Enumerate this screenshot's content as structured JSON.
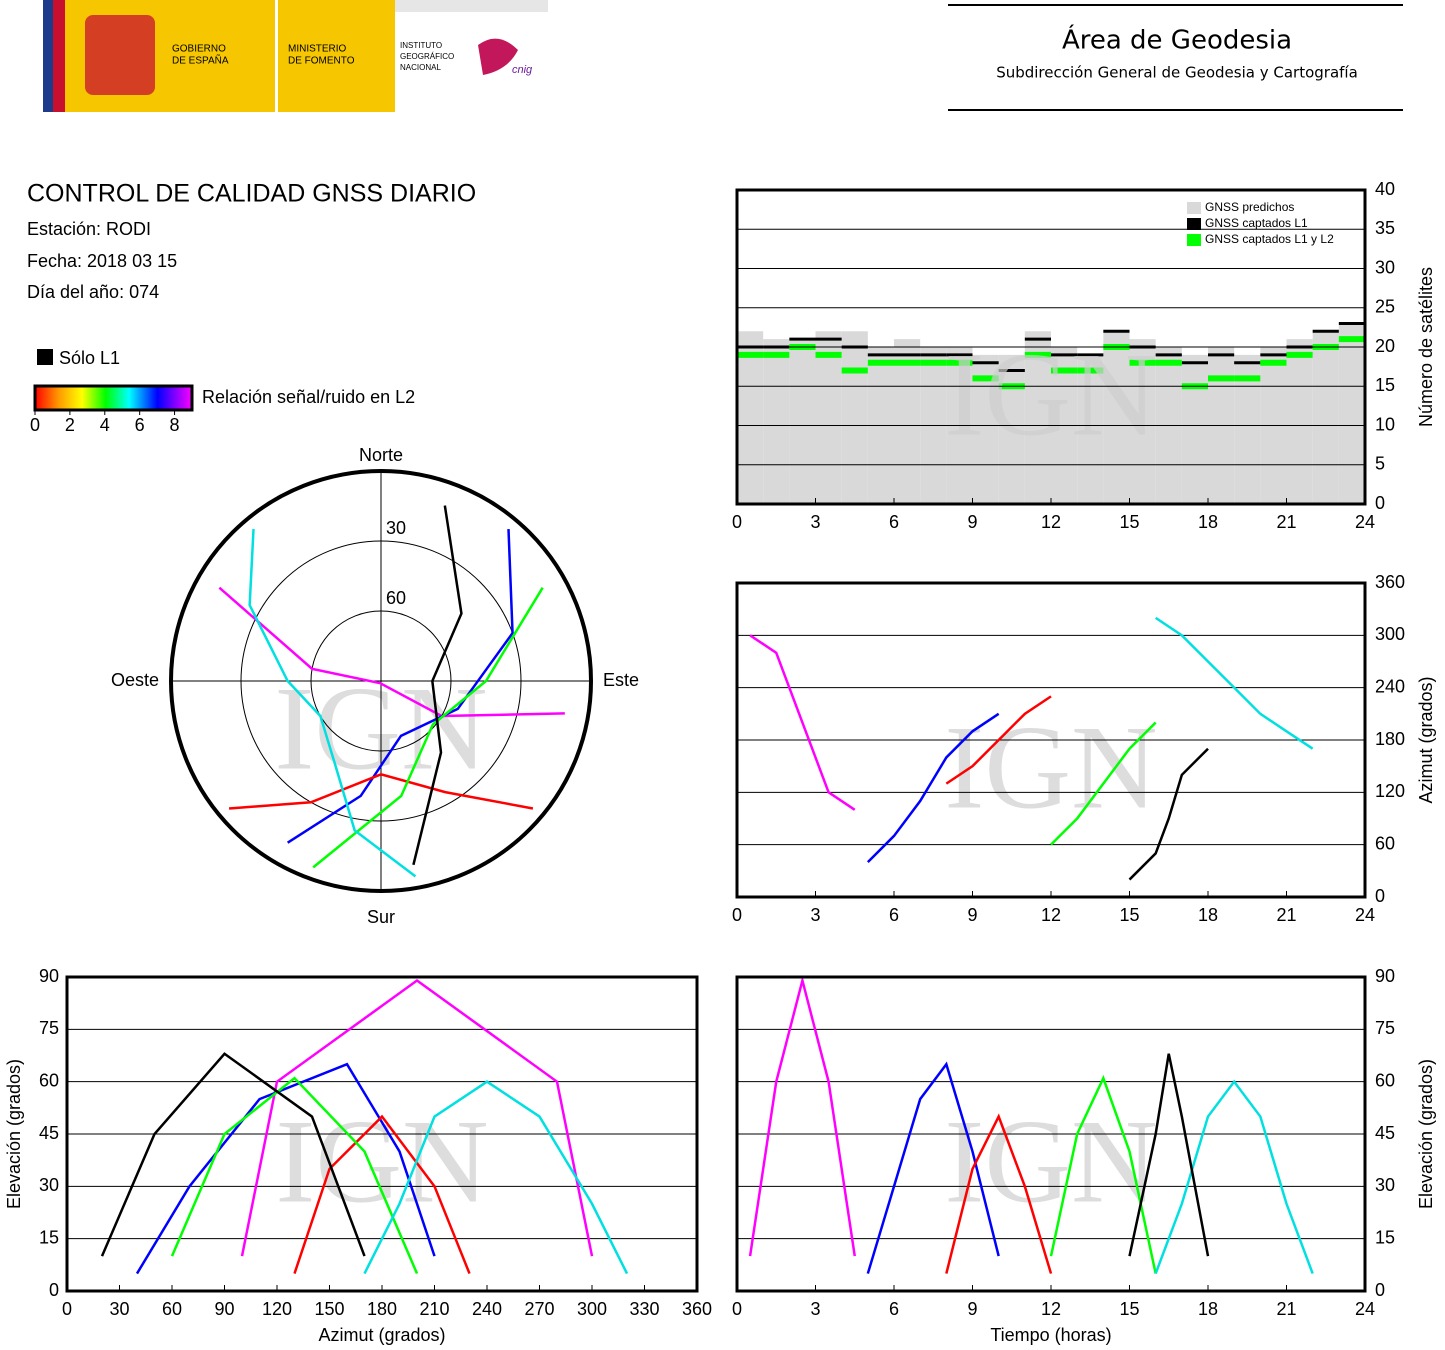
{
  "header": {
    "government": [
      "GOBIERNO",
      "DE ESPAÑA"
    ],
    "ministry": [
      "MINISTERIO",
      "DE FOMENTO"
    ],
    "institute": [
      "INSTITUTO",
      "GEOGRÁFICO",
      "NACIONAL"
    ],
    "cnig": "cnig",
    "title": "Área de Geodesia",
    "subtitle": "Subdirección General de Geodesia y Cartografía"
  },
  "report": {
    "title": "CONTROL DE CALIDAD GNSS DIARIO",
    "station": "Estación: RODI",
    "date": "Fecha: 2018 03 15",
    "doy": "Día del año: 074",
    "l1_only": "Sólo L1",
    "colorbar": {
      "label": "Relación señal/ruido en L2",
      "lim": [
        0,
        9
      ],
      "ticks": [
        0,
        2,
        4,
        6,
        8
      ]
    }
  },
  "chart_data": [
    {
      "type": "step",
      "ylabel": "Número de satélites",
      "watermark": "IGN",
      "legend": "top-right",
      "grid": true,
      "x": [
        0,
        1,
        2,
        3,
        4,
        5,
        6,
        7,
        8,
        9,
        10,
        11,
        12,
        13,
        14,
        15,
        16,
        17,
        18,
        19,
        20,
        21,
        22,
        23
      ],
      "xlim": [
        0,
        24
      ],
      "xticks": [
        0,
        3,
        6,
        9,
        12,
        15,
        18,
        21,
        24
      ],
      "ylim": [
        0,
        40
      ],
      "yticks": [
        0,
        5,
        10,
        15,
        20,
        25,
        30,
        35,
        40
      ],
      "series": [
        {
          "name": "GNSS predichos",
          "color": "#d9d9d9",
          "values": [
            22,
            21,
            21,
            22,
            22,
            20,
            21,
            20,
            20,
            19,
            19,
            22,
            20,
            19,
            22,
            21,
            20,
            19,
            20,
            19,
            20,
            21,
            22,
            23
          ]
        },
        {
          "name": "GNSS captados L1",
          "color": "#000000",
          "values": [
            20,
            20,
            21,
            21,
            20,
            19,
            19,
            19,
            19,
            18,
            17,
            21,
            19,
            19,
            22,
            20,
            19,
            18,
            19,
            18,
            19,
            20,
            22,
            23
          ]
        },
        {
          "name": "GNSS captados L1 y L2",
          "color": "#00ff00",
          "values": [
            19,
            19,
            20,
            19,
            17,
            18,
            18,
            18,
            18,
            16,
            15,
            19,
            17,
            17,
            20,
            18,
            18,
            15,
            16,
            16,
            18,
            19,
            20,
            21
          ]
        }
      ]
    },
    {
      "type": "polar",
      "watermark": "IGN",
      "rticks": [
        30,
        60
      ],
      "directions": {
        "north": "Norte",
        "south": "Sur",
        "east": "Este",
        "west": "Oeste"
      },
      "series": [
        {
          "color": "#ff00ff",
          "azimuth": [
            300,
            280,
            200,
            120,
            100
          ],
          "elevation": [
            10,
            60,
            89,
            60,
            10
          ]
        },
        {
          "color": "#0000ff",
          "azimuth": [
            40,
            70,
            110,
            160,
            190,
            210
          ],
          "elevation": [
            5,
            30,
            55,
            65,
            40,
            10
          ]
        },
        {
          "color": "#ff0000",
          "azimuth": [
            130,
            150,
            180,
            210,
            230
          ],
          "elevation": [
            5,
            35,
            50,
            30,
            5
          ]
        },
        {
          "color": "#00ff00",
          "azimuth": [
            60,
            90,
            130,
            170,
            200
          ],
          "elevation": [
            10,
            45,
            61,
            40,
            5
          ]
        },
        {
          "color": "#00e0e0",
          "azimuth": [
            320,
            300,
            270,
            240,
            210,
            190,
            170
          ],
          "elevation": [
            5,
            25,
            50,
            60,
            50,
            25,
            5
          ]
        },
        {
          "color": "#000000",
          "azimuth": [
            20,
            50,
            90,
            140,
            170
          ],
          "elevation": [
            10,
            45,
            68,
            50,
            10
          ]
        }
      ]
    },
    {
      "type": "line",
      "ylabel": "Azimut (grados)",
      "watermark": "IGN",
      "grid": true,
      "xlim": [
        0,
        24
      ],
      "xticks": [
        0,
        3,
        6,
        9,
        12,
        15,
        18,
        21,
        24
      ],
      "ylim": [
        0,
        360
      ],
      "yticks": [
        0,
        60,
        120,
        180,
        240,
        300,
        360
      ],
      "series": [
        {
          "color": "#ff00ff",
          "x": [
            0.5,
            1.5,
            2.5,
            3.5,
            4.5
          ],
          "values": [
            300,
            280,
            200,
            120,
            100
          ]
        },
        {
          "color": "#0000ff",
          "x": [
            5,
            6,
            7,
            8,
            9,
            10
          ],
          "values": [
            40,
            70,
            110,
            160,
            190,
            210
          ]
        },
        {
          "color": "#ff0000",
          "x": [
            8,
            9,
            10,
            11,
            12
          ],
          "values": [
            130,
            150,
            180,
            210,
            230
          ]
        },
        {
          "color": "#00ff00",
          "x": [
            12,
            13,
            14,
            15,
            16
          ],
          "values": [
            60,
            90,
            130,
            170,
            200
          ]
        },
        {
          "color": "#00e0e0",
          "x": [
            16,
            17,
            18,
            19,
            20,
            21,
            22
          ],
          "values": [
            320,
            300,
            270,
            240,
            210,
            190,
            170
          ]
        },
        {
          "color": "#000000",
          "x": [
            15,
            16,
            16.5,
            17,
            18
          ],
          "values": [
            20,
            50,
            90,
            140,
            170
          ]
        }
      ]
    },
    {
      "type": "line",
      "xlabel": "Azimut (grados)",
      "ylabel": "Elevación (grados)",
      "watermark": "IGN",
      "grid": true,
      "xlim": [
        0,
        360
      ],
      "xticks": [
        0,
        30,
        60,
        90,
        120,
        150,
        180,
        210,
        240,
        270,
        300,
        330,
        360
      ],
      "ylim": [
        0,
        90
      ],
      "yticks": [
        0,
        15,
        30,
        45,
        60,
        75,
        90
      ],
      "series": [
        {
          "color": "#ff00ff",
          "x": [
            300,
            280,
            200,
            120,
            100
          ],
          "values": [
            10,
            60,
            89,
            60,
            10
          ]
        },
        {
          "color": "#0000ff",
          "x": [
            40,
            70,
            110,
            160,
            190,
            210
          ],
          "values": [
            5,
            30,
            55,
            65,
            40,
            10
          ]
        },
        {
          "color": "#ff0000",
          "x": [
            130,
            150,
            180,
            210,
            230
          ],
          "values": [
            5,
            35,
            50,
            30,
            5
          ]
        },
        {
          "color": "#00ff00",
          "x": [
            60,
            90,
            130,
            170,
            200
          ],
          "values": [
            10,
            45,
            61,
            40,
            5
          ]
        },
        {
          "color": "#00e0e0",
          "x": [
            320,
            300,
            270,
            240,
            210,
            190,
            170
          ],
          "values": [
            5,
            25,
            50,
            60,
            50,
            25,
            5
          ]
        },
        {
          "color": "#000000",
          "x": [
            20,
            50,
            90,
            140,
            170
          ],
          "values": [
            10,
            45,
            68,
            50,
            10
          ]
        }
      ]
    },
    {
      "type": "line",
      "xlabel": "Tiempo (horas)",
      "ylabel": "Elevación (grados)",
      "watermark": "IGN",
      "grid": true,
      "xlim": [
        0,
        24
      ],
      "xticks": [
        0,
        3,
        6,
        9,
        12,
        15,
        18,
        21,
        24
      ],
      "ylim": [
        0,
        90
      ],
      "yticks": [
        0,
        15,
        30,
        45,
        60,
        75,
        90
      ],
      "series": [
        {
          "color": "#ff00ff",
          "x": [
            0.5,
            1.5,
            2.5,
            3.5,
            4.5
          ],
          "values": [
            10,
            60,
            89,
            60,
            10
          ]
        },
        {
          "color": "#0000ff",
          "x": [
            5,
            6,
            7,
            8,
            9,
            10
          ],
          "values": [
            5,
            30,
            55,
            65,
            40,
            10
          ]
        },
        {
          "color": "#ff0000",
          "x": [
            8,
            9,
            10,
            11,
            12
          ],
          "values": [
            5,
            35,
            50,
            30,
            5
          ]
        },
        {
          "color": "#00ff00",
          "x": [
            12,
            13,
            14,
            15,
            16
          ],
          "values": [
            10,
            45,
            61,
            40,
            5
          ]
        },
        {
          "color": "#00e0e0",
          "x": [
            16,
            17,
            18,
            19,
            20,
            21,
            22
          ],
          "values": [
            5,
            25,
            50,
            60,
            50,
            25,
            5
          ]
        },
        {
          "color": "#000000",
          "x": [
            15,
            16,
            16.5,
            17,
            18
          ],
          "values": [
            10,
            45,
            68,
            50,
            10
          ]
        }
      ]
    }
  ]
}
